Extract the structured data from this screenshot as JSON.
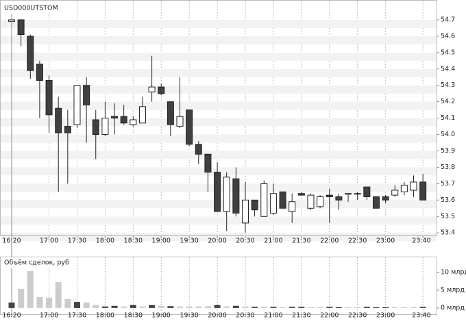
{
  "chart_data": [
    {
      "type": "candlestick",
      "title": "USD000UTSTOM",
      "categories": [
        "16:20",
        null,
        null,
        null,
        "17:00",
        null,
        null,
        "17:30",
        null,
        null,
        "18:00",
        null,
        null,
        "18:30",
        null,
        null,
        "19:00",
        null,
        null,
        "19:30",
        null,
        null,
        "20:00",
        null,
        null,
        "20:30",
        null,
        null,
        "21:00",
        null,
        null,
        "21:30",
        null,
        null,
        "22:00",
        null,
        null,
        "22:30",
        null,
        null,
        "23:00",
        null,
        null,
        null,
        "23:40"
      ],
      "open": [
        54.69,
        54.7,
        54.6,
        54.43,
        54.33,
        54.16,
        54.05,
        54.06,
        54.3,
        54.09,
        54.0,
        54.11,
        54.11,
        54.06,
        54.07,
        54.26,
        54.29,
        54.2,
        54.05,
        54.15,
        53.94,
        53.88,
        53.77,
        53.53,
        53.73,
        53.46,
        53.6,
        53.5,
        53.52,
        53.65,
        53.53,
        53.64,
        53.55,
        53.56,
        53.63,
        53.62,
        53.64,
        53.64,
        53.68,
        53.62,
        53.62,
        53.63,
        53.65,
        53.66,
        53.71
      ],
      "high": [
        54.7,
        54.7,
        54.61,
        54.45,
        54.36,
        54.23,
        54.15,
        54.3,
        54.35,
        54.15,
        54.2,
        54.19,
        54.18,
        54.11,
        54.23,
        54.48,
        54.31,
        54.2,
        54.35,
        54.15,
        53.96,
        53.88,
        53.83,
        53.77,
        53.8,
        53.71,
        53.6,
        53.72,
        53.7,
        53.65,
        53.64,
        53.65,
        53.64,
        53.63,
        53.67,
        53.64,
        53.64,
        53.65,
        53.68,
        53.62,
        53.63,
        53.69,
        53.71,
        53.75,
        53.76
      ],
      "low": [
        54.69,
        54.54,
        54.34,
        54.1,
        54.01,
        53.65,
        53.7,
        54.04,
        53.95,
        53.85,
        53.99,
        54.0,
        54.06,
        54.05,
        54.07,
        54.2,
        54.24,
        53.99,
        54.04,
        53.93,
        53.82,
        53.65,
        53.53,
        53.41,
        53.5,
        53.4,
        53.5,
        53.5,
        53.51,
        53.55,
        53.46,
        53.63,
        53.54,
        53.55,
        53.46,
        53.54,
        53.59,
        53.6,
        53.6,
        53.55,
        53.58,
        53.62,
        53.63,
        53.62,
        53.6
      ],
      "close": [
        54.7,
        54.61,
        54.39,
        54.33,
        54.12,
        54.01,
        54.01,
        54.3,
        54.18,
        54.0,
        54.1,
        54.1,
        54.07,
        54.09,
        54.17,
        54.29,
        54.25,
        54.06,
        54.11,
        53.94,
        53.88,
        53.77,
        53.53,
        53.74,
        53.52,
        53.6,
        53.54,
        53.7,
        53.64,
        53.55,
        53.59,
        53.63,
        53.63,
        53.62,
        53.62,
        53.6,
        53.64,
        53.64,
        53.62,
        53.55,
        53.6,
        53.66,
        53.69,
        53.71,
        53.6
      ],
      "up_color": "#ffffff",
      "down_color": "#404040",
      "ylim": [
        53.38,
        54.8
      ],
      "yticks": [
        53.4,
        53.5,
        53.6,
        53.7,
        53.8,
        53.9,
        {
          "value": 54,
          "label": "54.0"
        },
        54.1,
        54.2,
        54.3,
        54.4,
        54.5,
        54.6,
        54.7
      ]
    },
    {
      "type": "bar",
      "title": "Объём сделок, руб",
      "categories": [
        "16:20",
        null,
        null,
        null,
        "17:00",
        null,
        null,
        "17:30",
        null,
        null,
        "18:00",
        null,
        null,
        "18:30",
        null,
        null,
        "19:00",
        null,
        null,
        "19:30",
        null,
        null,
        "20:00",
        null,
        null,
        "20:30",
        null,
        null,
        "21:00",
        null,
        null,
        "21:30",
        null,
        null,
        "22:00",
        null,
        null,
        "22:30",
        null,
        null,
        "23:00",
        null,
        null,
        null,
        "23:40"
      ],
      "values": [
        1.5,
        5.4,
        10.4,
        3.1,
        2.9,
        7.3,
        2.5,
        1.7,
        1.5,
        0.8,
        0.4,
        0.6,
        0.4,
        0.8,
        0.4,
        0.8,
        0.6,
        0.5,
        0.4,
        0.4,
        0.4,
        0.5,
        0.8,
        0.4,
        0.6,
        0.4,
        0.3,
        0.3,
        0.3,
        0.2,
        0.3,
        0.3,
        0.2,
        0.2,
        0.3,
        0.2,
        0.2,
        0.2,
        0.3,
        0.2,
        0.2,
        0.2,
        0.2,
        0.2,
        0.3
      ],
      "colors": [
        "#444444",
        "#cccccc",
        "#cccccc",
        "#cccccc",
        "#cccccc",
        "#cccccc",
        "#cccccc",
        "#444444",
        "#cccccc",
        "#cccccc",
        "#444444",
        "#444444",
        "#cccccc",
        "#444444",
        "#cccccc",
        "#444444",
        "#cccccc",
        "#444444",
        "#cccccc",
        "#cccccc",
        "#cccccc",
        "#cccccc",
        "#444444",
        "#cccccc",
        "#444444",
        "#cccccc",
        "#444444",
        "#cccccc",
        "#444444",
        "#cccccc",
        "#444444",
        "#444444",
        "#cccccc",
        "#cccccc",
        "#444444",
        "#444444",
        "#cccccc",
        "#cccccc",
        "#444444",
        "#444444",
        "#444444",
        "#cccccc",
        "#cccccc",
        "#cccccc",
        "#444444"
      ],
      "ylim": [
        -0.4,
        11
      ],
      "yticks": [
        {
          "value": 10,
          "label": "10 млрд"
        },
        {
          "value": 5,
          "label": "5 млрд"
        },
        {
          "value": 0,
          "label": "0 млрд"
        }
      ]
    }
  ]
}
